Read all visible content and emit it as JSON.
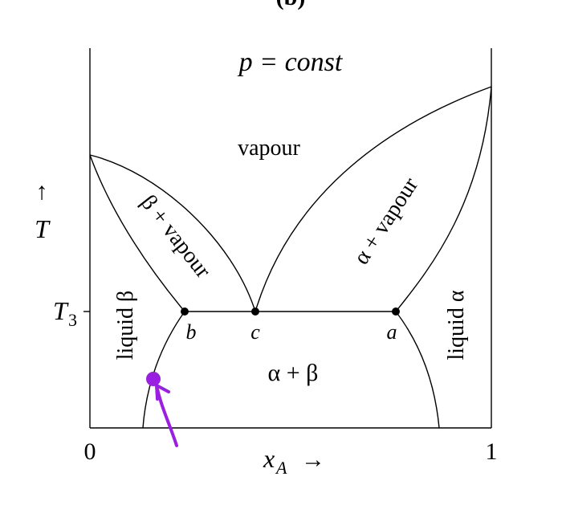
{
  "title": "(b)",
  "condition": "p = const",
  "regions": {
    "vapour": "vapour",
    "beta_vapour": "β + vapour",
    "alpha_vapour": "α + vapour",
    "liquid_beta": "liquid β",
    "liquid_alpha": "liquid α",
    "alpha_beta": "α + β"
  },
  "points": {
    "b": "b",
    "c": "c",
    "a": "a"
  },
  "y_axis": {
    "arrow": "↑",
    "symbol": "T",
    "tick": {
      "symbol": "T",
      "subscript": "3"
    }
  },
  "x_axis": {
    "start": "0",
    "end": "1",
    "symbol": "x",
    "subscript": "A",
    "arrow": "→"
  }
}
